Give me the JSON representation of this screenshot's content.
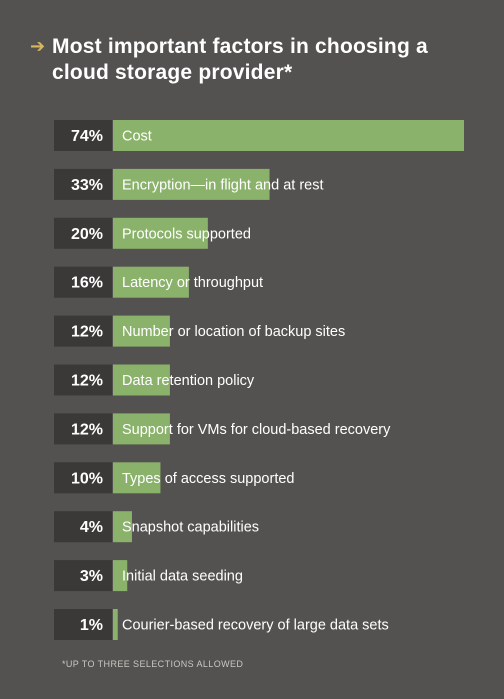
{
  "header": {
    "title": "Most important factors in choosing a cloud storage provider*"
  },
  "footnote": "*UP TO THREE SELECTIONS ALLOWED",
  "colors": {
    "bar": "#8ab26a",
    "percent_box": "#3a3937",
    "background": "#545250",
    "accent_arrow": "#d8b75a"
  },
  "chart_data": {
    "type": "bar",
    "orientation": "horizontal",
    "categories": [
      "Cost",
      "Encryption—in flight and at rest",
      "Protocols supported",
      "Latency or throughput",
      "Number or location of backup sites",
      "Data retention policy",
      "Support for VMs for cloud-based recovery",
      "Types of access supported",
      "Snapshot capabilities",
      "Initial data seeding",
      "Courier-based recovery of large data sets"
    ],
    "values": [
      74,
      33,
      20,
      16,
      12,
      12,
      12,
      10,
      4,
      3,
      1
    ],
    "value_labels": [
      "74%",
      "33%",
      "20%",
      "16%",
      "12%",
      "12%",
      "12%",
      "10%",
      "4%",
      "3%",
      "1%"
    ],
    "xlim": [
      0,
      74
    ],
    "grid": false,
    "legend": "none"
  }
}
